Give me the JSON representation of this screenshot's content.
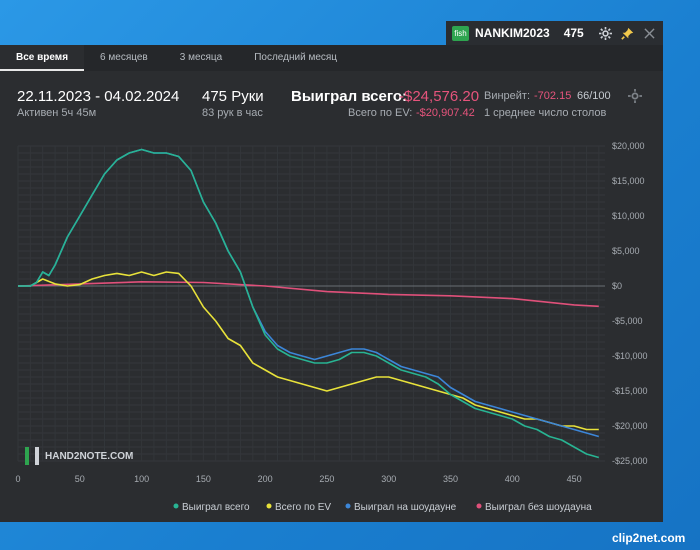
{
  "titlebar": {
    "badge": "fish",
    "nickname": "NANKIM2023",
    "count": "475",
    "icons": [
      "gear-icon",
      "pin-icon",
      "close-icon"
    ]
  },
  "tabs": [
    "Все время",
    "6 месяцев",
    "3 месяца",
    "Последний месяц"
  ],
  "stats": {
    "date_range": "22.11.2023 - 04.02.2024",
    "active_time": "Активен 5ч 45м",
    "hands": "475 Руки",
    "hands_rate": "83 рук в час",
    "won_label": "Выиграл всего:",
    "won_value": "-$24,576.20",
    "ev_label": "Всего по EV:",
    "ev_value": "-$20,907.42",
    "winrate_label": "Винрейт:",
    "winrate_value": "-702.15",
    "winrate_per": "66/100",
    "tables": "1 среднее число столов"
  },
  "watermark": "HAND2NOTE.COM",
  "clip_label": "clip2net.com",
  "colors": {
    "total": "#28b493",
    "ev": "#e8e23a",
    "showdown": "#3c86d8",
    "nonshowdown": "#e0507a"
  },
  "chart_data": {
    "type": "line",
    "x_ticks": [
      0,
      50,
      100,
      150,
      200,
      250,
      300,
      350,
      400,
      450
    ],
    "y_ticks": [
      20000,
      15000,
      10000,
      5000,
      0,
      -5000,
      -10000,
      -15000,
      -20000,
      -25000
    ],
    "y_tick_labels": [
      "$20,000",
      "$15,000",
      "$10,000",
      "$5,000",
      "$0",
      "-$5,000",
      "-$10,000",
      "-$15,000",
      "-$20,000",
      "-$25,000"
    ],
    "xlim": [
      0,
      475
    ],
    "ylim": [
      -25000,
      20000
    ],
    "legend_position": "bottom-right",
    "series": [
      {
        "name": "Выиграл всего",
        "color": "#28b493",
        "x": [
          0,
          10,
          15,
          20,
          25,
          30,
          40,
          50,
          60,
          70,
          80,
          90,
          100,
          110,
          120,
          130,
          140,
          150,
          160,
          170,
          180,
          190,
          200,
          210,
          220,
          230,
          240,
          250,
          260,
          270,
          280,
          290,
          300,
          310,
          320,
          330,
          340,
          350,
          360,
          370,
          380,
          390,
          400,
          410,
          420,
          430,
          440,
          450,
          460,
          470
        ],
        "y": [
          0,
          0,
          500,
          2000,
          1500,
          3000,
          7000,
          10000,
          13000,
          16000,
          18000,
          19000,
          19500,
          19000,
          19000,
          18500,
          16500,
          12000,
          9000,
          5000,
          2000,
          -3000,
          -7000,
          -9000,
          -10000,
          -10500,
          -11000,
          -11000,
          -10500,
          -9500,
          -9500,
          -10000,
          -11000,
          -12000,
          -12500,
          -13000,
          -14000,
          -15500,
          -16500,
          -17500,
          -18000,
          -18500,
          -19000,
          -20000,
          -20500,
          -21500,
          -22000,
          -23000,
          -24000,
          -24500
        ]
      },
      {
        "name": "Всего по EV",
        "color": "#e8e23a",
        "x": [
          0,
          10,
          20,
          30,
          40,
          50,
          60,
          70,
          80,
          90,
          100,
          110,
          120,
          130,
          140,
          150,
          160,
          170,
          180,
          190,
          200,
          210,
          220,
          230,
          240,
          250,
          260,
          270,
          280,
          290,
          300,
          310,
          320,
          330,
          340,
          350,
          360,
          370,
          380,
          390,
          400,
          410,
          420,
          430,
          440,
          450,
          460,
          470
        ],
        "y": [
          0,
          0,
          1000,
          300,
          0,
          200,
          1000,
          1500,
          1800,
          1500,
          2000,
          1500,
          2000,
          1800,
          0,
          -3000,
          -5000,
          -7500,
          -8500,
          -11000,
          -12000,
          -13000,
          -13500,
          -14000,
          -14500,
          -15000,
          -14500,
          -14000,
          -13500,
          -13000,
          -13000,
          -13500,
          -14000,
          -14500,
          -15000,
          -15500,
          -16000,
          -17000,
          -17500,
          -18000,
          -18500,
          -19000,
          -19000,
          -19500,
          -20000,
          -20000,
          -20500,
          -20500
        ]
      },
      {
        "name": "Выиграл на шоудауне",
        "color": "#3c86d8",
        "x": [
          0,
          10,
          15,
          20,
          25,
          30,
          40,
          50,
          60,
          70,
          80,
          90,
          100,
          110,
          120,
          130,
          140,
          150,
          160,
          170,
          180,
          190,
          200,
          210,
          220,
          230,
          240,
          250,
          260,
          270,
          280,
          290,
          300,
          310,
          320,
          330,
          340,
          350,
          360,
          370,
          380,
          390,
          400,
          410,
          420,
          430,
          440,
          450,
          460,
          470
        ],
        "y": [
          0,
          0,
          500,
          2000,
          1500,
          3000,
          7000,
          10000,
          13000,
          16000,
          18000,
          19000,
          19500,
          19000,
          19000,
          18500,
          16500,
          12000,
          9000,
          5000,
          2000,
          -3000,
          -6500,
          -8500,
          -9500,
          -10000,
          -10500,
          -10000,
          -9500,
          -9000,
          -9000,
          -9500,
          -10500,
          -11500,
          -12000,
          -12500,
          -13000,
          -14500,
          -15500,
          -16500,
          -17000,
          -17500,
          -18000,
          -18500,
          -19000,
          -19500,
          -20000,
          -20500,
          -21000,
          -21500
        ]
      },
      {
        "name": "Выиграл без шоудауна",
        "color": "#e0507a",
        "x": [
          0,
          50,
          100,
          150,
          200,
          250,
          300,
          350,
          400,
          450,
          470
        ],
        "y": [
          0,
          300,
          600,
          500,
          0,
          -800,
          -1200,
          -1400,
          -1800,
          -2700,
          -2900
        ]
      }
    ]
  }
}
